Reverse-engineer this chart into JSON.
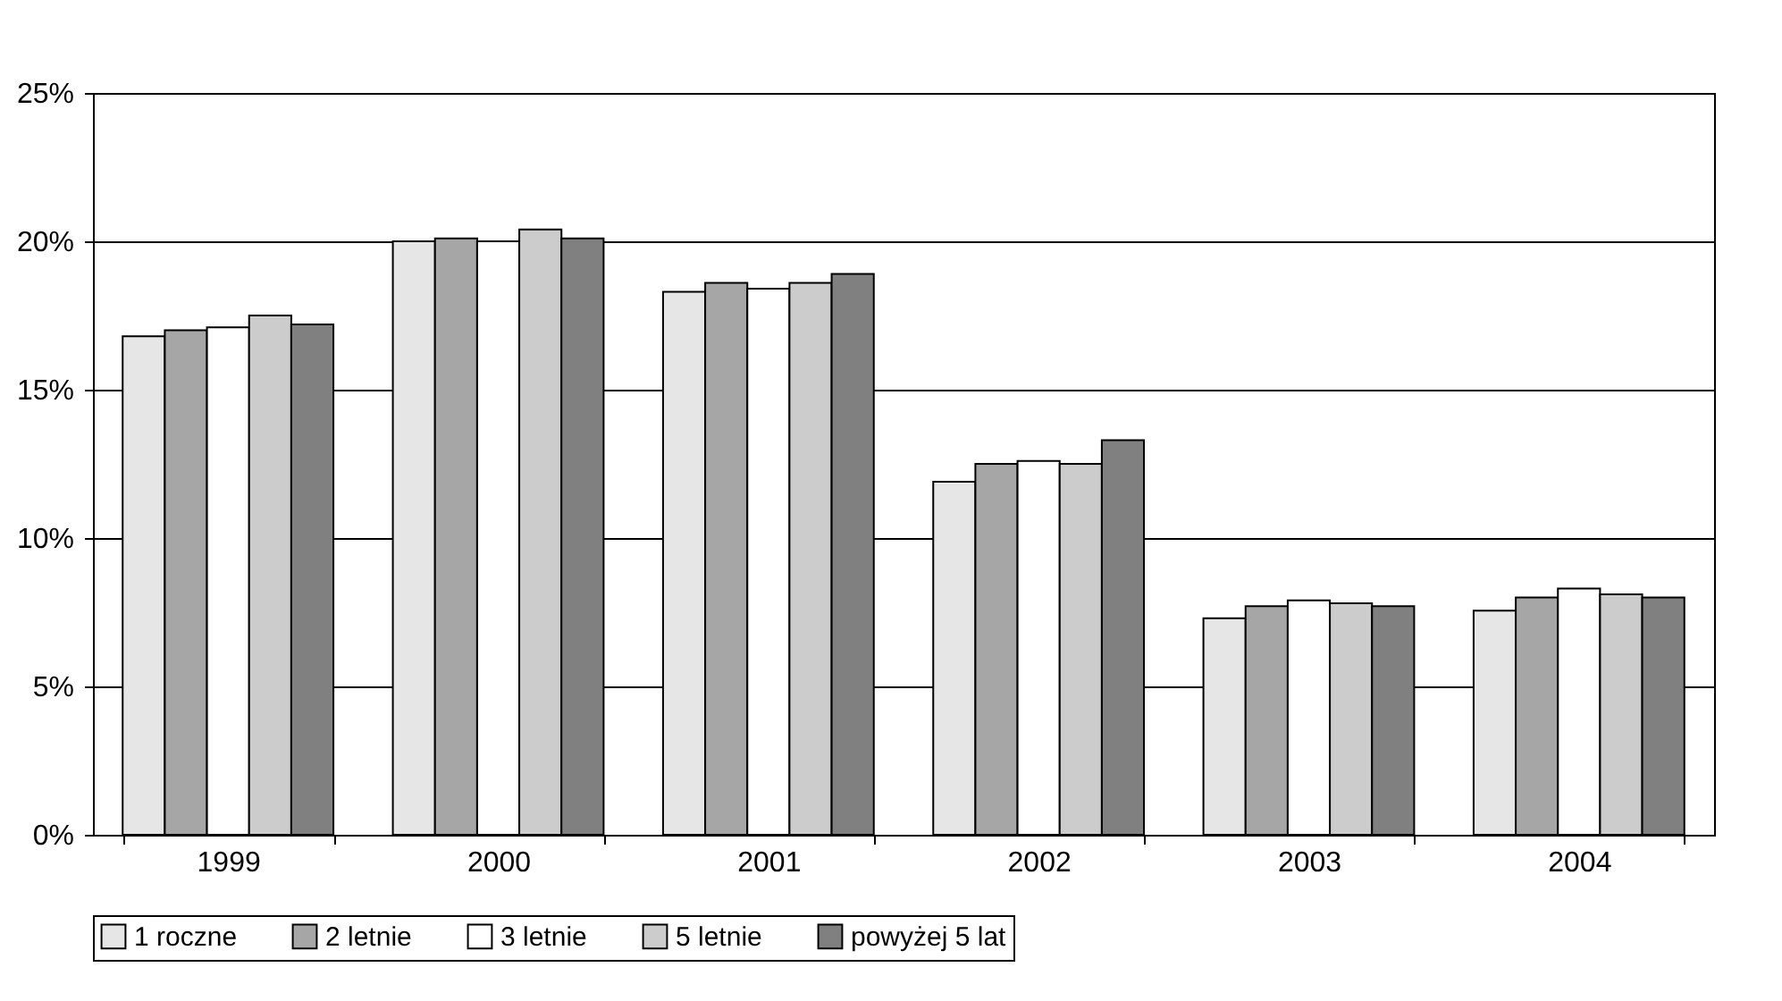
{
  "chart_data": {
    "type": "bar",
    "categories": [
      "1999",
      "2000",
      "2001",
      "2002",
      "2003",
      "2004"
    ],
    "series": [
      {
        "name": "1 roczne",
        "color": "#e6e6e6",
        "values": [
          16.8,
          20.0,
          18.3,
          11.9,
          7.3,
          7.55
        ]
      },
      {
        "name": "2 letnie",
        "color": "#a6a6a6",
        "values": [
          17.0,
          20.1,
          18.6,
          12.5,
          7.7,
          8.0
        ]
      },
      {
        "name": "3 letnie",
        "color": "#ffffff",
        "values": [
          17.1,
          20.0,
          18.4,
          12.6,
          7.9,
          8.3
        ]
      },
      {
        "name": "5 letnie",
        "color": "#cccccc",
        "values": [
          17.5,
          20.4,
          18.6,
          12.5,
          7.8,
          8.1
        ]
      },
      {
        "name": "powyżej 5 lat",
        "color": "#808080",
        "values": [
          17.2,
          20.1,
          18.9,
          13.3,
          7.7,
          8.0
        ]
      }
    ],
    "ylim": [
      0,
      25
    ],
    "yticks": [
      {
        "value": 0,
        "label": "0%"
      },
      {
        "value": 5,
        "label": "5%"
      },
      {
        "value": 10,
        "label": "10%"
      },
      {
        "value": 15,
        "label": "15%"
      },
      {
        "value": 20,
        "label": "20%"
      },
      {
        "value": 25,
        "label": "25%"
      }
    ],
    "grid": "y",
    "legend": "bottom"
  }
}
